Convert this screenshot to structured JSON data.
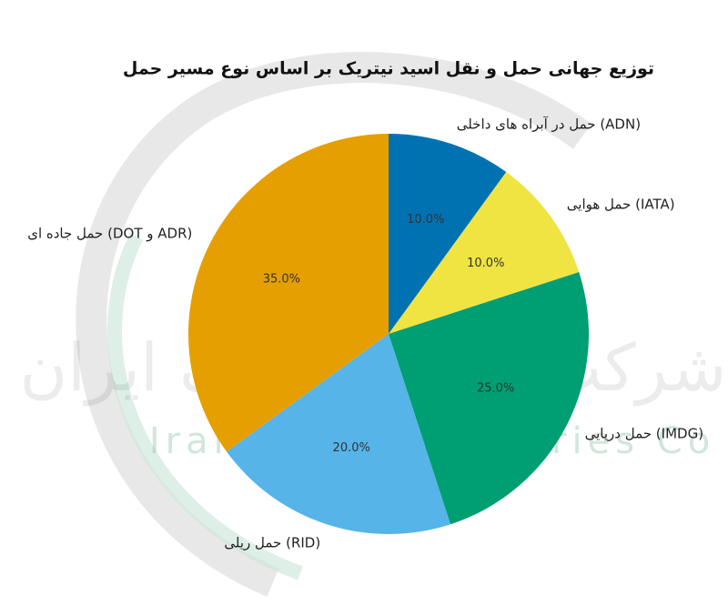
{
  "chart_data": {
    "type": "pie",
    "title": "توزیع جهانی حمل و نقل اسید نیتریک بر اساس نوع مسیر حمل",
    "categories": [
      "حمل در آبراه های داخلی (ADN)",
      "حمل هوایی (IATA)",
      "حمل دریایی (IMDG)",
      "حمل ریلی (RID)",
      "حمل جاده ای (DOT و ADR)"
    ],
    "values": [
      10,
      10,
      25,
      20,
      35
    ],
    "value_labels": [
      "10.0%",
      "10.0%",
      "25.0%",
      "20.0%",
      "35.0%"
    ],
    "colors": [
      "#0072B2",
      "#F0E442",
      "#009E73",
      "#56B4E9",
      "#E69F00"
    ],
    "watermark": {
      "text": "Iran Nitric Industries Co",
      "text_fa": "شرکت صنایع نیتریک ایران"
    }
  }
}
